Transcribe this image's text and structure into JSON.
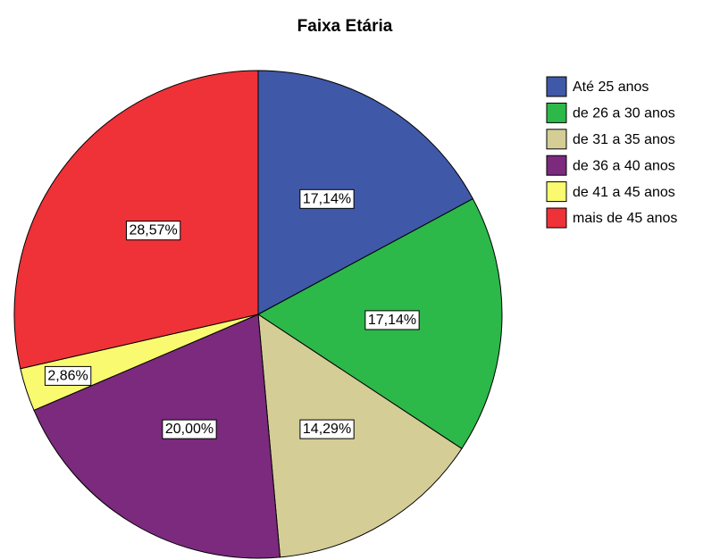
{
  "chart_data": {
    "type": "pie",
    "title": "Faixa Etária",
    "categories": [
      "Até 25 anos",
      "de 26 a 30 anos",
      "de 31 a 35 anos",
      "de 36 a 40 anos",
      "de 41 a 45 anos",
      "mais de 45 anos"
    ],
    "values": [
      17.14,
      17.14,
      14.29,
      20.0,
      2.86,
      28.57
    ],
    "value_labels": [
      "17,14%",
      "17,14%",
      "14,29%",
      "20,00%",
      "2,86%",
      "28,57%"
    ],
    "colors": [
      "#3f58a8",
      "#2db84a",
      "#d4cd96",
      "#7b2a7e",
      "#fafa70",
      "#ee3238"
    ],
    "legend": "right"
  }
}
